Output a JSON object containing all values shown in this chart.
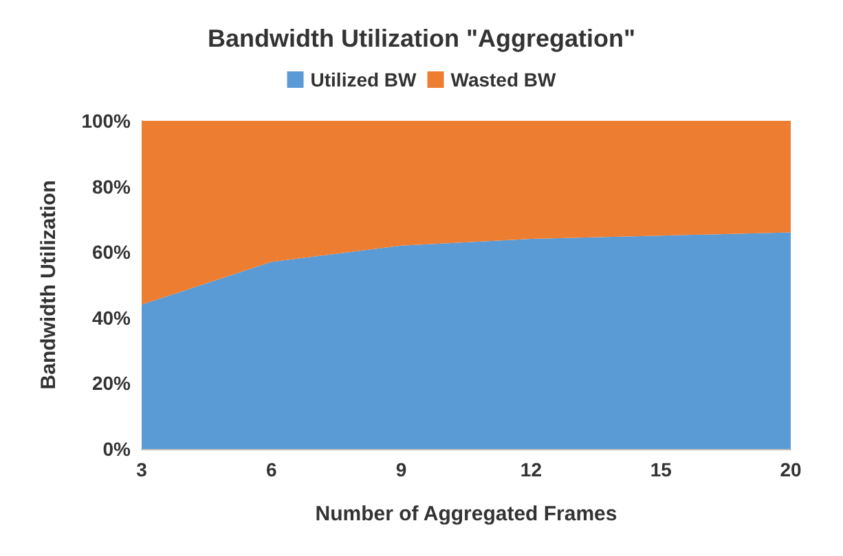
{
  "chart_data": {
    "type": "area",
    "title": "Bandwidth Utilization \"Aggregation\"",
    "xlabel": "Number of Aggregated Frames",
    "ylabel": "Bandwidth Utilization",
    "categories": [
      "3",
      "6",
      "9",
      "12",
      "15",
      "20"
    ],
    "stacked": true,
    "series": [
      {
        "name": "Utilized BW",
        "color": "#5b9bd5",
        "values": [
          44,
          57,
          62,
          64,
          65,
          66
        ]
      },
      {
        "name": "Wasted BW",
        "color": "#ed7d31",
        "values": [
          56,
          43,
          38,
          36,
          35,
          34
        ]
      }
    ],
    "ylim": [
      0,
      100
    ],
    "yticks": [
      {
        "value": 0,
        "label": "0%"
      },
      {
        "value": 20,
        "label": "20%"
      },
      {
        "value": 40,
        "label": "40%"
      },
      {
        "value": 60,
        "label": "60%"
      },
      {
        "value": 80,
        "label": "80%"
      },
      {
        "value": 100,
        "label": "100%"
      }
    ],
    "legend": "top"
  }
}
